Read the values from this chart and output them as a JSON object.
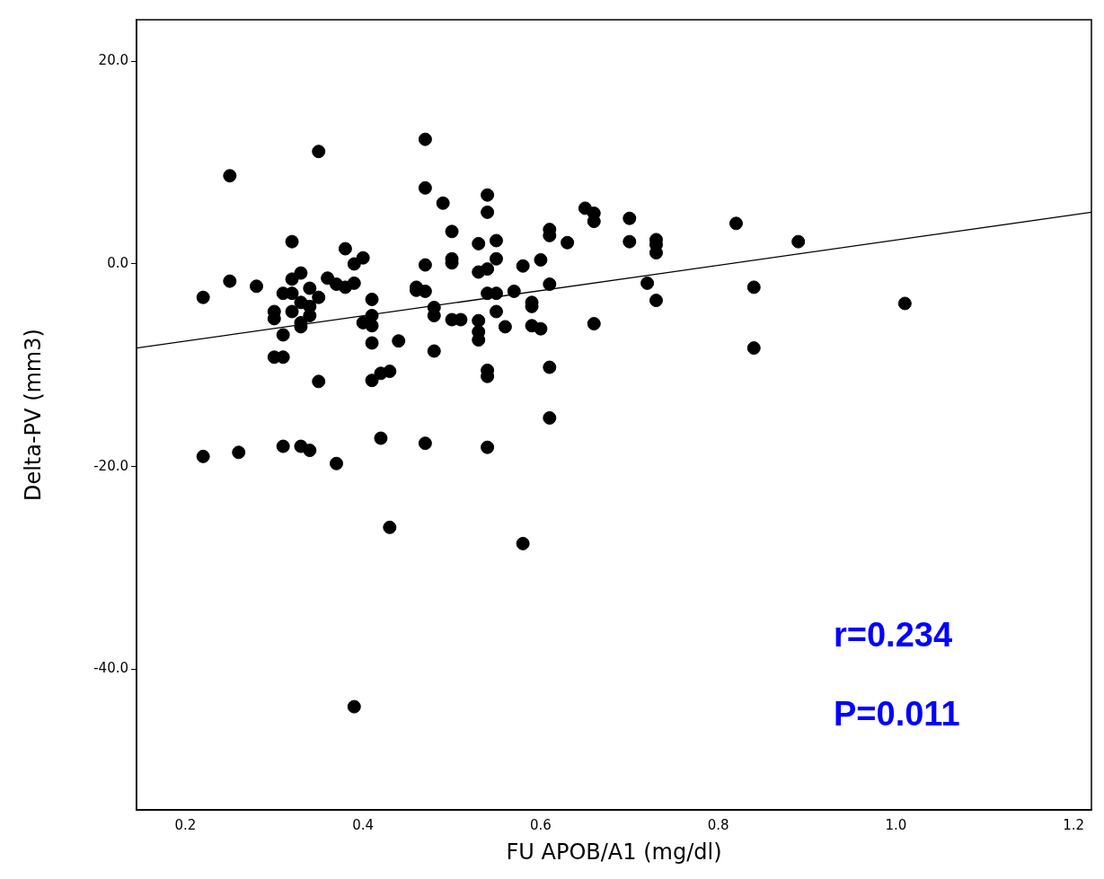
{
  "chart_data": {
    "type": "scatter",
    "xlabel": "FU APOB/A1 (mg/dl)",
    "ylabel": "Delta-PV (mm3)",
    "xlim": [
      0.145,
      1.22
    ],
    "ylim": [
      -53.9,
      24.1
    ],
    "xticks": [
      {
        "value": 0.2,
        "label": "0.2"
      },
      {
        "value": 0.4,
        "label": "0.4"
      },
      {
        "value": 0.6,
        "label": "0.6"
      },
      {
        "value": 0.8,
        "label": "0.8"
      },
      {
        "value": 1.0,
        "label": "1.0"
      },
      {
        "value": 1.2,
        "label": "1.2"
      }
    ],
    "yticks": [
      {
        "value": -40,
        "label": "-40.0"
      },
      {
        "value": -20,
        "label": "-20.0"
      },
      {
        "value": 0,
        "label": "0.0"
      },
      {
        "value": 20,
        "label": "20.0"
      }
    ],
    "grid": false,
    "legend": false,
    "marker": "circle",
    "annotations": [
      "r=0.234",
      "P=0.011"
    ],
    "series": [
      {
        "color": "#000000",
        "x": [
          0.22,
          0.22,
          0.25,
          0.25,
          0.26,
          0.28,
          0.3,
          0.3,
          0.3,
          0.31,
          0.31,
          0.31,
          0.31,
          0.32,
          0.32,
          0.32,
          0.32,
          0.33,
          0.33,
          0.33,
          0.33,
          0.33,
          0.34,
          0.34,
          0.34,
          0.34,
          0.35,
          0.35,
          0.35,
          0.36,
          0.37,
          0.37,
          0.38,
          0.38,
          0.39,
          0.39,
          0.39,
          0.4,
          0.4,
          0.41,
          0.41,
          0.41,
          0.41,
          0.41,
          0.42,
          0.42,
          0.43,
          0.43,
          0.44,
          0.46,
          0.46,
          0.47,
          0.47,
          0.47,
          0.47,
          0.47,
          0.48,
          0.48,
          0.48,
          0.49,
          0.5,
          0.5,
          0.5,
          0.5,
          0.51,
          0.53,
          0.53,
          0.53,
          0.53,
          0.53,
          0.54,
          0.54,
          0.54,
          0.54,
          0.54,
          0.54,
          0.54,
          0.55,
          0.55,
          0.55,
          0.55,
          0.56,
          0.57,
          0.58,
          0.58,
          0.59,
          0.59,
          0.59,
          0.6,
          0.6,
          0.61,
          0.61,
          0.61,
          0.61,
          0.61,
          0.63,
          0.65,
          0.66,
          0.66,
          0.66,
          0.7,
          0.7,
          0.72,
          0.73,
          0.73,
          0.73,
          0.73,
          0.82,
          0.84,
          0.84,
          0.89,
          1.01
        ],
        "values": [
          -3.3,
          -19.0,
          8.7,
          -1.7,
          -18.6,
          -2.2,
          -4.7,
          -5.4,
          -9.2,
          -2.9,
          -7.0,
          -9.2,
          -18.0,
          2.2,
          -1.5,
          -2.9,
          -4.7,
          -0.9,
          -3.8,
          -5.8,
          -6.2,
          -18.0,
          -2.4,
          -4.2,
          -5.1,
          -18.4,
          11.1,
          -3.3,
          -11.6,
          -1.4,
          -2.0,
          -19.7,
          1.5,
          -2.3,
          0.0,
          -1.9,
          -43.7,
          0.6,
          -5.8,
          -3.5,
          -5.1,
          -6.1,
          -7.8,
          -11.5,
          -10.8,
          -17.2,
          -10.6,
          -26.0,
          -7.6,
          -2.3,
          -2.6,
          12.3,
          7.5,
          -0.1,
          -2.7,
          -17.7,
          -4.3,
          -5.1,
          -8.6,
          6.0,
          3.2,
          0.5,
          0.1,
          -5.5,
          -5.5,
          2.0,
          -0.8,
          -5.6,
          -6.7,
          -7.5,
          6.8,
          5.1,
          -0.5,
          -2.9,
          -10.5,
          -11.1,
          -18.1,
          2.3,
          0.5,
          -2.9,
          -4.7,
          -6.2,
          -2.7,
          -0.2,
          -27.6,
          -3.8,
          -4.2,
          -6.1,
          0.4,
          -6.4,
          3.4,
          2.8,
          -2.0,
          -10.2,
          -15.2,
          2.1,
          5.5,
          5.0,
          4.2,
          -5.9,
          4.5,
          2.2,
          -1.9,
          2.4,
          1.9,
          1.1,
          -3.6,
          4.0,
          -2.3,
          -8.3,
          2.2,
          -3.9
        ]
      },
      {
        "type": "line",
        "color": "#000000",
        "x": [
          0.145,
          1.22
        ],
        "values": [
          -8.3,
          5.1
        ],
        "marker": "none"
      }
    ]
  }
}
